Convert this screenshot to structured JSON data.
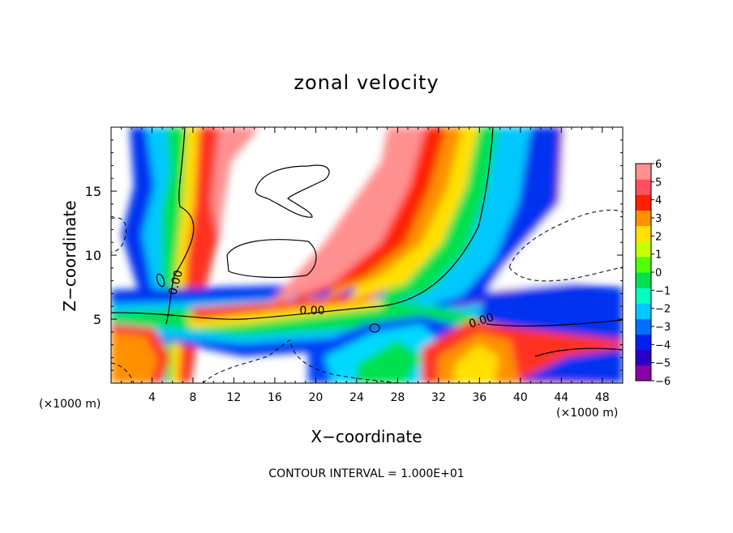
{
  "chart_data": {
    "type": "heatmap",
    "title": "zonal velocity",
    "xlabel": "X−coordinate",
    "ylabel": "Z−coordinate",
    "x_unit_label": "(×1000 m)",
    "xlim": [
      0,
      50
    ],
    "ylim": [
      0,
      20
    ],
    "x_ticks": [
      4,
      8,
      12,
      16,
      20,
      24,
      28,
      32,
      36,
      40,
      44,
      48
    ],
    "y_ticks": [
      5,
      10,
      15
    ],
    "colorbar": {
      "ticks": [
        "6",
        "5",
        "4",
        "3",
        "2",
        "1",
        "0",
        "−1",
        "−2",
        "−3",
        "−4",
        "−5",
        "−6"
      ],
      "range": [
        -6,
        6
      ],
      "colors": [
        "#8a00a8",
        "#2a00c8",
        "#0020f0",
        "#0070ff",
        "#00c8ff",
        "#00ffc0",
        "#00e050",
        "#50ff00",
        "#c8ff00",
        "#ffe000",
        "#ff9000",
        "#ff2000",
        "#ff5060",
        "#ff9090"
      ]
    },
    "contour_labels": [
      "0.00",
      "0.00",
      "0.00"
    ],
    "contour_interval": "CONTOUR INTERVAL = 1.000E+01"
  }
}
